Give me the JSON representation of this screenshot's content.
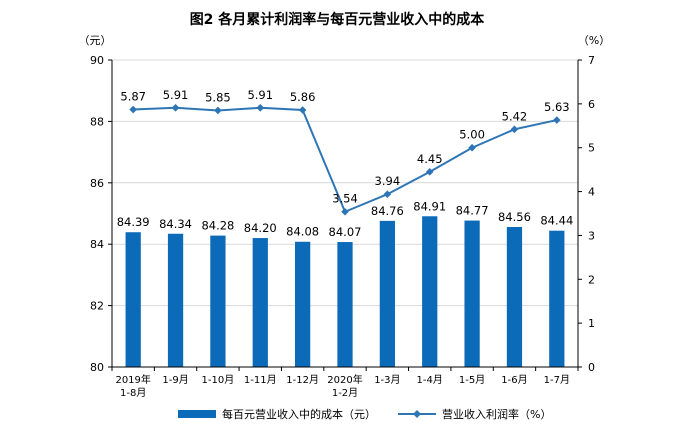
{
  "chart_data": {
    "type": "bar+line",
    "title": "图2  各月累计利润率与每百元营业收入中的成本",
    "left_unit": "（元）",
    "right_unit": "（%）",
    "categories": [
      "2019年\n1-8月",
      "1-9月",
      "1-10月",
      "1-11月",
      "1-12月",
      "2020年\n1-2月",
      "1-3月",
      "1-4月",
      "1-5月",
      "1-6月",
      "1-7月"
    ],
    "y_left": {
      "min": 80,
      "max": 90,
      "ticks": [
        80,
        82,
        84,
        86,
        88,
        90
      ]
    },
    "y_right": {
      "min": 0,
      "max": 7,
      "ticks": [
        0,
        1,
        2,
        3,
        4,
        5,
        6,
        7
      ]
    },
    "grid": true,
    "series": [
      {
        "name": "每百元营业收入中的成本（元）",
        "type": "bar",
        "axis": "left",
        "color": "#0b6bb8",
        "values": [
          84.39,
          84.34,
          84.28,
          84.2,
          84.08,
          84.07,
          84.76,
          84.91,
          84.77,
          84.56,
          84.44
        ],
        "labels": [
          "84.39",
          "84.34",
          "84.28",
          "84.20",
          "84.08",
          "84.07",
          "84.76",
          "84.91",
          "84.77",
          "84.56",
          "84.44"
        ]
      },
      {
        "name": "营业收入利润率（%）",
        "type": "line",
        "axis": "right",
        "color": "#2e75b6",
        "values": [
          5.87,
          5.91,
          5.85,
          5.91,
          5.86,
          3.54,
          3.94,
          4.45,
          5.0,
          5.42,
          5.63
        ],
        "labels": [
          "5.87",
          "5.91",
          "5.85",
          "5.91",
          "5.86",
          "3.54",
          "3.94",
          "4.45",
          "5.00",
          "5.42",
          "5.63"
        ]
      }
    ],
    "legend_position": "bottom"
  }
}
